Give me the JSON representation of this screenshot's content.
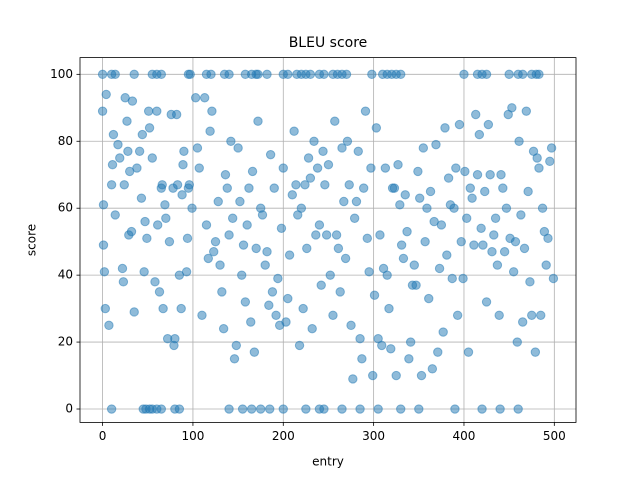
{
  "chart_data": {
    "type": "scatter",
    "title": "BLEU score",
    "x_label": "entry",
    "y_label": "score",
    "color": "#1f77b4",
    "grid": true,
    "xlim": [
      -25,
      524
    ],
    "ylim": [
      -4,
      105
    ],
    "xticks": [
      0,
      100,
      200,
      300,
      400,
      500
    ],
    "yticks": [
      0,
      20,
      40,
      60,
      80,
      100
    ],
    "x": [
      0,
      1,
      1,
      2,
      3,
      4,
      7,
      10,
      11,
      12,
      14,
      17,
      19,
      22,
      23,
      24,
      25,
      27,
      28,
      29,
      30,
      32,
      33,
      35,
      38,
      41,
      43,
      44,
      46,
      47,
      49,
      51,
      52,
      55,
      58,
      60,
      61,
      63,
      65,
      66,
      67,
      69,
      70,
      72,
      74,
      76,
      78,
      79,
      80,
      82,
      83,
      85,
      87,
      88,
      89,
      90,
      93,
      94,
      95,
      96,
      99,
      103,
      105,
      107,
      110,
      113,
      115,
      117,
      119,
      121,
      123,
      125,
      128,
      130,
      132,
      134,
      136,
      138,
      140,
      142,
      144,
      146,
      148,
      150,
      152,
      154,
      156,
      158,
      160,
      162,
      164,
      166,
      168,
      170,
      172,
      175,
      177,
      180,
      182,
      184,
      186,
      188,
      190,
      192,
      194,
      196,
      198,
      200,
      203,
      205,
      207,
      210,
      212,
      214,
      216,
      218,
      220,
      222,
      224,
      226,
      228,
      230,
      232,
      234,
      236,
      238,
      240,
      242,
      244,
      246,
      248,
      250,
      252,
      255,
      257,
      259,
      261,
      263,
      265,
      267,
      269,
      271,
      273,
      275,
      277,
      279,
      281,
      283,
      285,
      287,
      289,
      291,
      293,
      295,
      297,
      299,
      301,
      303,
      305,
      307,
      309,
      311,
      313,
      315,
      317,
      319,
      321,
      323,
      325,
      327,
      329,
      331,
      333,
      335,
      337,
      339,
      341,
      343,
      345,
      347,
      349,
      351,
      353,
      355,
      357,
      359,
      361,
      363,
      365,
      367,
      369,
      371,
      373,
      375,
      377,
      379,
      381,
      383,
      385,
      387,
      389,
      391,
      393,
      395,
      397,
      399,
      401,
      403,
      405,
      407,
      409,
      411,
      413,
      415,
      417,
      419,
      421,
      423,
      425,
      427,
      429,
      431,
      433,
      435,
      437,
      439,
      441,
      443,
      445,
      447,
      449,
      451,
      453,
      455,
      457,
      459,
      461,
      463,
      465,
      467,
      469,
      471,
      473,
      475,
      477,
      479,
      481,
      483,
      485,
      487,
      489,
      491,
      493,
      495,
      497,
      499,
      0,
      10,
      14,
      35,
      55,
      60,
      65,
      95,
      97,
      115,
      120,
      135,
      140,
      158,
      165,
      170,
      172,
      182,
      200,
      205,
      215,
      220,
      225,
      230,
      240,
      245,
      255,
      260,
      265,
      270,
      298,
      310,
      315,
      320,
      325,
      330,
      400,
      415,
      420,
      425,
      450,
      460,
      465,
      475,
      480,
      483,
      10,
      45,
      48,
      52,
      55,
      60,
      65,
      80,
      85,
      140,
      155,
      165,
      175,
      185,
      200,
      225,
      240,
      245,
      265,
      285,
      305,
      330,
      350,
      390,
      420,
      440,
      460
    ],
    "y": [
      89,
      61,
      49,
      41,
      30,
      94,
      25,
      67,
      73,
      82,
      58,
      79,
      75,
      42,
      38,
      67,
      93,
      86,
      77,
      52,
      71,
      53,
      92,
      29,
      72,
      77,
      63,
      82,
      41,
      56,
      51,
      89,
      84,
      75,
      38,
      89,
      55,
      35,
      66,
      67,
      30,
      61,
      57,
      21,
      50,
      88,
      66,
      19,
      21,
      88,
      67,
      40,
      30,
      64,
      73,
      77,
      41,
      51,
      66,
      67,
      60,
      93,
      78,
      72,
      28,
      93,
      55,
      45,
      83,
      89,
      47,
      50,
      62,
      43,
      35,
      24,
      70,
      66,
      52,
      80,
      57,
      15,
      19,
      78,
      62,
      40,
      49,
      32,
      55,
      66,
      26,
      71,
      17,
      48,
      86,
      60,
      58,
      43,
      47,
      31,
      76,
      35,
      66,
      28,
      39,
      25,
      54,
      72,
      26,
      33,
      46,
      64,
      83,
      67,
      58,
      19,
      60,
      30,
      67,
      48,
      75,
      69,
      24,
      80,
      52,
      72,
      55,
      37,
      77,
      67,
      52,
      73,
      40,
      28,
      86,
      52,
      48,
      35,
      78,
      62,
      45,
      80,
      67,
      25,
      9,
      57,
      62,
      77,
      21,
      15,
      66,
      89,
      51,
      41,
      72,
      10,
      34,
      84,
      21,
      52,
      19,
      42,
      72,
      40,
      30,
      18,
      66,
      66,
      10,
      73,
      61,
      49,
      45,
      64,
      53,
      15,
      20,
      37,
      43,
      37,
      71,
      63,
      10,
      78,
      50,
      60,
      33,
      65,
      12,
      56,
      79,
      17,
      42,
      55,
      23,
      84,
      46,
      69,
      61,
      39,
      60,
      72,
      28,
      85,
      50,
      39,
      71,
      57,
      17,
      66,
      63,
      49,
      88,
      70,
      82,
      54,
      49,
      65,
      32,
      85,
      70,
      47,
      52,
      57,
      43,
      28,
      70,
      66,
      47,
      60,
      88,
      51,
      90,
      41,
      50,
      20,
      80,
      58,
      26,
      48,
      89,
      65,
      38,
      28,
      77,
      17,
      75,
      72,
      28,
      60,
      53,
      43,
      51,
      74,
      78,
      39,
      100,
      100,
      100,
      100,
      100,
      100,
      100,
      100,
      100,
      100,
      100,
      100,
      100,
      100,
      100,
      100,
      100,
      100,
      100,
      100,
      100,
      100,
      100,
      100,
      100,
      100,
      100,
      100,
      100,
      100,
      100,
      100,
      100,
      100,
      100,
      100,
      100,
      100,
      100,
      100,
      100,
      100,
      100,
      100,
      100,
      100,
      0,
      0,
      0,
      0,
      0,
      0,
      0,
      0,
      0,
      0,
      0,
      0,
      0,
      0,
      0,
      0,
      0,
      0,
      0,
      0,
      0,
      0,
      0,
      0,
      0,
      0,
      0
    ]
  }
}
